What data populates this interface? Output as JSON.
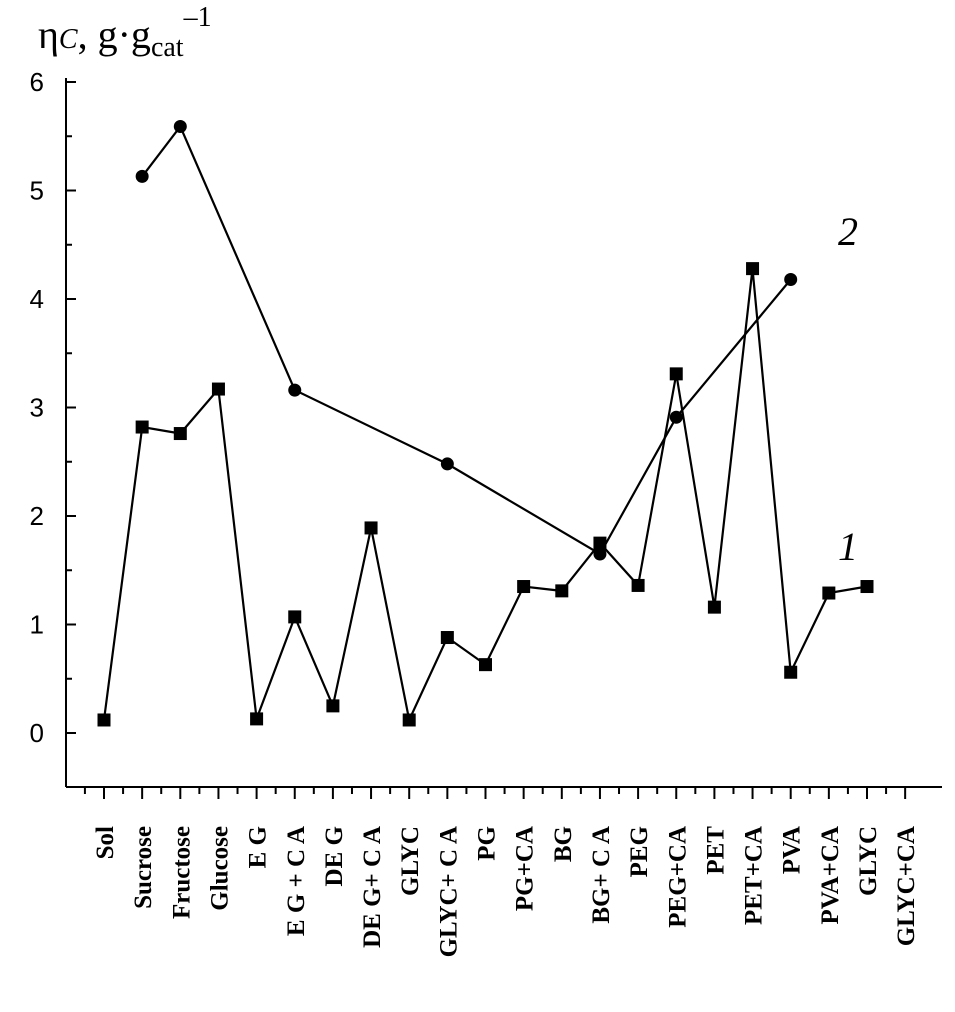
{
  "chart_data": {
    "type": "line",
    "title": "",
    "ylabel": {
      "symbol": "η",
      "subscript": "C",
      "unit_prefix": ", g·g",
      "unit_subscript": "cat",
      "unit_superscript": "–1"
    },
    "xlabel": "",
    "ylim": [
      -0.5,
      6
    ],
    "yticks": [
      "0",
      "1",
      "2",
      "3",
      "4",
      "5",
      "6"
    ],
    "categories": [
      "Sol",
      "Sucrose",
      "Fructose",
      "Glucose",
      "E G",
      "E G + C A",
      "DE G",
      "DE G+ C A",
      "GLYC",
      "GLYC+ C A",
      "PG",
      "PG+CA",
      "BG",
      "BG+ C A",
      "PEG",
      "PEG+CA",
      "PET",
      "PET+CA",
      "PVA",
      "PVA+CA",
      "GLYC",
      "GLYC+CA"
    ],
    "series": [
      {
        "name": "1",
        "marker": "square",
        "values": [
          0.12,
          2.82,
          2.76,
          3.17,
          0.13,
          1.07,
          0.25,
          1.89,
          0.12,
          0.88,
          0.63,
          1.35,
          1.31,
          1.75,
          1.36,
          3.31,
          1.16,
          4.28,
          0.56,
          1.29,
          1.35,
          null
        ]
      },
      {
        "name": "2",
        "marker": "circle",
        "values": [
          null,
          5.13,
          5.59,
          null,
          null,
          3.16,
          null,
          null,
          null,
          2.48,
          null,
          null,
          null,
          1.65,
          null,
          2.91,
          null,
          null,
          4.18,
          null,
          null,
          null
        ]
      }
    ]
  }
}
